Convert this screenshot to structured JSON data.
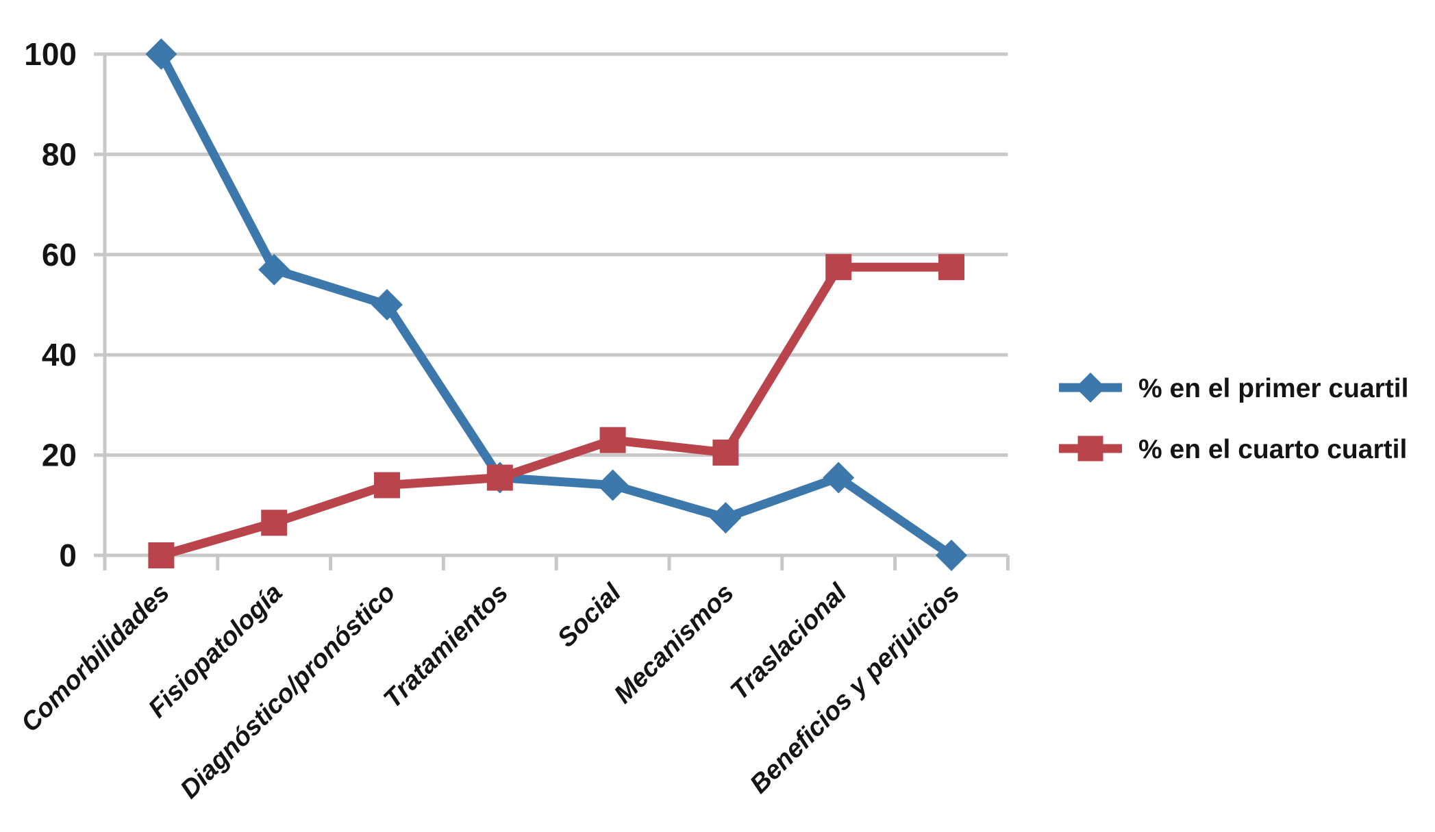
{
  "chart_data": {
    "type": "line",
    "title": "",
    "xlabel": "",
    "ylabel": "",
    "categories": [
      "Comorbilidades",
      "Fisiopatología",
      "Diagnóstico/pronóstico",
      "Tratamientos",
      "Social",
      "Mecanismos",
      "Traslacional",
      "Beneficios y perjuicios"
    ],
    "series": [
      {
        "name": "% en el primer cuartil",
        "marker": "diamond",
        "color": "#3D78AC",
        "values": [
          100,
          57,
          50,
          15.5,
          14,
          7.5,
          15.5,
          0
        ]
      },
      {
        "name": "% en el cuarto cuartil",
        "marker": "square",
        "color": "#B9444C",
        "values": [
          0,
          6.5,
          14,
          15.5,
          23,
          20.5,
          57.5,
          57.5
        ]
      }
    ],
    "ylim": [
      0,
      100
    ],
    "yticks": [
      0,
      20,
      40,
      60,
      80,
      100
    ],
    "grid": "horizontal",
    "legend_position": "right",
    "gridline_color": "#C8C8C8",
    "background_color": "#FFFFFF",
    "text_color": "#141414"
  }
}
